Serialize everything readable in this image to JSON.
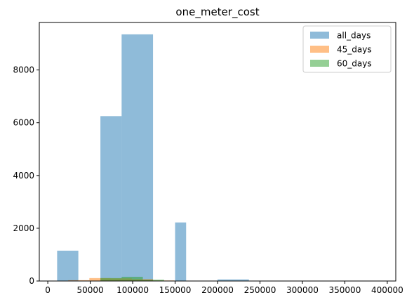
{
  "chart_data": {
    "type": "histogram",
    "title": "one_meter_cost",
    "xlabel": "",
    "ylabel": "",
    "xlim": [
      -10000,
      410000
    ],
    "ylim": [
      0,
      9800
    ],
    "x_ticks": [
      0,
      50000,
      100000,
      150000,
      200000,
      250000,
      300000,
      350000,
      400000
    ],
    "x_tick_labels": [
      "0",
      "50000",
      "100000",
      "150000",
      "200000",
      "250000",
      "300000",
      "350000",
      "400000"
    ],
    "y_ticks": [
      0,
      2000,
      4000,
      6000,
      8000
    ],
    "y_tick_labels": [
      "0",
      "2000",
      "4000",
      "6000",
      "8000"
    ],
    "grid": false,
    "legend_position": "upper right",
    "series": [
      {
        "name": "all_days",
        "color": "#1f77b4",
        "alpha": 0.5,
        "bins": [
          [
            11000,
            36000,
            1150
          ],
          [
            36000,
            62000,
            0
          ],
          [
            62000,
            87000,
            6250
          ],
          [
            87000,
            124000,
            9350
          ],
          [
            124000,
            150000,
            0
          ],
          [
            150000,
            163000,
            2220
          ],
          [
            163000,
            200000,
            0
          ],
          [
            200000,
            237000,
            60
          ]
        ]
      },
      {
        "name": "45_days",
        "color": "#ff7f0e",
        "alpha": 0.5,
        "bins": [
          [
            24000,
            49000,
            30
          ],
          [
            49000,
            74000,
            110
          ],
          [
            74000,
            99000,
            100
          ],
          [
            99000,
            124000,
            70
          ],
          [
            124000,
            149000,
            20
          ]
        ]
      },
      {
        "name": "60_days",
        "color": "#2ca02c",
        "alpha": 0.5,
        "bins": [
          [
            62000,
            87000,
            110
          ],
          [
            87000,
            112000,
            160
          ],
          [
            112000,
            137000,
            50
          ]
        ]
      }
    ]
  }
}
